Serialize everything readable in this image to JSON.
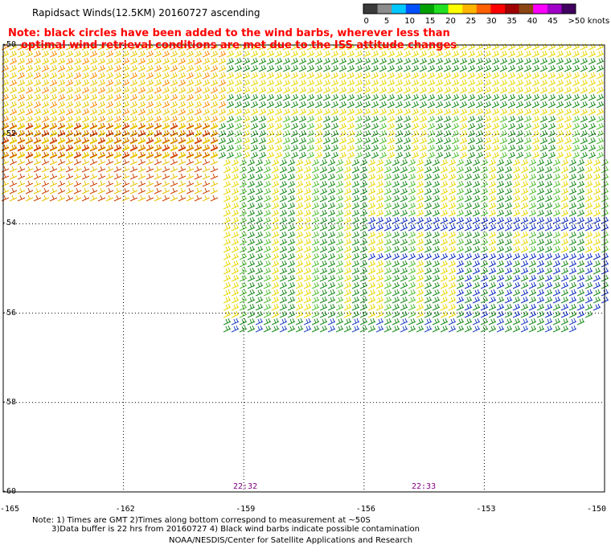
{
  "title": "Rapidsact Winds(12.5KM) 20160727 ascending",
  "note_line1": "Note: black circles have been added to the wind barbs, wherever less than",
  "note_line2": "optimal wind retrieval conditions are met due to the ISS attitude changes",
  "colorbar": {
    "labels": [
      "0",
      "5",
      "10",
      "15",
      "20",
      "25",
      "30",
      "35",
      "40",
      "45",
      ">50 knots"
    ],
    "colors": [
      "#3a3a3a",
      "#8c8c8c",
      "#00c8ff",
      "#0050ff",
      "#00a000",
      "#20e020",
      "#ffff00",
      "#ffb400",
      "#ff6000",
      "#ff0000",
      "#a00000",
      "#8b4513",
      "#ff00ff",
      "#a000c8",
      "#400060"
    ]
  },
  "lat_labels": [
    "-50",
    "-52",
    "-54",
    "-56",
    "-58",
    "-60"
  ],
  "lon_labels": [
    "-165",
    "-162",
    "-159",
    "-156",
    "-153",
    "-150"
  ],
  "times": [
    "22:32",
    "22:33"
  ],
  "footer": {
    "line1": "Note: 1) Times are GMT 2)Times along bottom correspond to measurement at ~50S",
    "line2": "3)Data buffer is 22 hrs from 20160727 4) Black wind barbs indicate possible contamination",
    "line3": "NOAA/NESDIS/Center for Satellite Applications and Research"
  }
}
